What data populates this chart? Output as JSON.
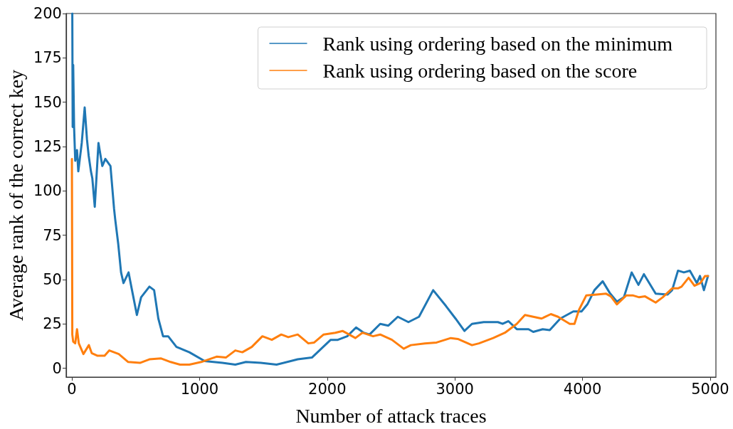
{
  "chart_data": {
    "type": "line",
    "xlabel": "Number of attack traces",
    "ylabel": "Average rank of the correct key",
    "xlim": [
      -45,
      5045
    ],
    "ylim": [
      -5,
      200
    ],
    "xticks": [
      0,
      1000,
      2000,
      3000,
      4000,
      5000
    ],
    "yticks": [
      0,
      25,
      50,
      75,
      100,
      125,
      150,
      175,
      200
    ],
    "grid": false,
    "legend": "top right",
    "marker": "none",
    "line_style": "solid",
    "series": [
      {
        "name": "Rank using ordering based on the minimum",
        "color": "#1f77b4",
        "x": [
          3,
          6,
          10,
          17,
          26,
          40,
          50,
          77,
          100,
          118,
          131,
          149,
          160,
          179,
          208,
          238,
          262,
          302,
          330,
          339,
          363,
          385,
          404,
          444,
          468,
          509,
          542,
          607,
          644,
          677,
          714,
          754,
          819,
          920,
          1040,
          1179,
          1280,
          1363,
          1480,
          1603,
          1769,
          1880,
          2027,
          2083,
          2157,
          2226,
          2286,
          2332,
          2415,
          2479,
          2553,
          2636,
          2719,
          2830,
          2931,
          3005,
          3075,
          3134,
          3226,
          3337,
          3374,
          3420,
          3485,
          3577,
          3614,
          3688,
          3743,
          3826,
          3928,
          3992,
          4038,
          4093,
          4158,
          4213,
          4269,
          4324,
          4385,
          4438,
          4481,
          4573,
          4665,
          4702,
          4748,
          4794,
          4841,
          4896,
          4920,
          4951,
          4983
        ],
        "values": [
          200,
          136,
          171,
          136,
          117,
          123,
          111,
          127,
          147,
          129,
          120,
          111,
          107,
          91,
          127,
          114,
          118,
          114,
          90,
          84,
          70,
          54,
          48,
          54,
          45,
          30,
          40,
          46,
          44,
          28,
          18,
          18,
          12,
          9,
          4,
          3,
          2,
          3.5,
          3,
          2,
          5,
          6,
          16,
          16,
          18,
          23,
          20,
          19,
          25,
          24,
          29,
          26,
          29,
          44,
          35,
          28,
          21,
          25,
          26,
          26,
          25,
          26.5,
          22,
          22,
          20.5,
          22,
          21.5,
          28,
          32,
          32,
          36,
          44,
          49,
          42.5,
          37.5,
          40,
          54,
          47,
          53,
          42,
          41.5,
          44,
          55,
          54,
          55,
          48,
          52,
          44,
          52
        ]
      },
      {
        "name": "Rank using ordering based on the score",
        "color": "#ff7f0e",
        "x": [
          0,
          3,
          10,
          26,
          40,
          54,
          90,
          133,
          155,
          201,
          256,
          293,
          367,
          441,
          533,
          607,
          699,
          773,
          847,
          920,
          1013,
          1133,
          1206,
          1280,
          1335,
          1409,
          1492,
          1566,
          1640,
          1695,
          1769,
          1852,
          1898,
          1972,
          2064,
          2120,
          2171,
          2221,
          2276,
          2359,
          2415,
          2507,
          2599,
          2655,
          2765,
          2857,
          2968,
          3023,
          3134,
          3189,
          3300,
          3392,
          3485,
          3549,
          3614,
          3679,
          3752,
          3808,
          3900,
          3937,
          3973,
          4029,
          4112,
          4185,
          4222,
          4269,
          4342,
          4397,
          4444,
          4490,
          4573,
          4628,
          4702,
          4748,
          4776,
          4831,
          4877,
          4923,
          4960,
          4983
        ],
        "values": [
          118,
          19,
          15,
          14,
          22,
          14,
          8,
          13,
          8.5,
          7,
          7,
          10,
          8,
          3.5,
          3,
          5,
          5.5,
          3.5,
          2,
          2,
          3.5,
          6.5,
          6,
          10,
          9,
          12,
          18,
          16,
          19,
          17.5,
          19,
          14,
          14.5,
          19,
          20,
          21,
          19,
          17,
          20,
          18,
          19,
          16,
          11,
          13,
          14,
          14.5,
          17,
          16.5,
          13,
          14,
          17,
          20,
          25,
          30,
          29,
          28,
          30.5,
          29,
          25,
          25,
          33,
          41,
          41.5,
          42,
          40.5,
          36,
          41,
          41,
          40,
          40.5,
          37,
          40,
          45,
          45,
          46,
          51,
          46.5,
          48,
          52,
          52
        ]
      }
    ]
  }
}
